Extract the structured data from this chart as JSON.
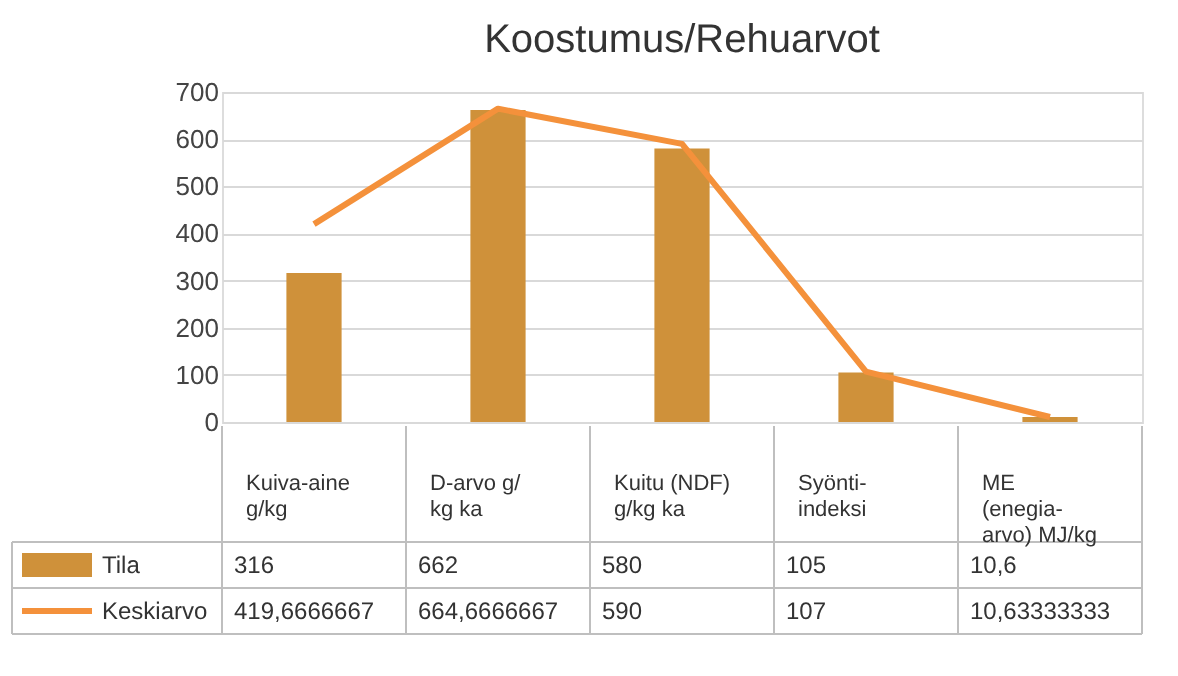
{
  "chart_data": {
    "type": "bar",
    "title": "Koostumus/Rehuarvot",
    "categories": [
      "Kuiva-aine\ng/kg",
      "D-arvo g/\nkg ka",
      "Kuitu (NDF)\ng/kg ka",
      "Syönti-\nindeksi",
      "ME\n(enegia-\narvo) MJ/kg"
    ],
    "series": [
      {
        "name": "Tila",
        "color": "#cf913a",
        "values": [
          316,
          662,
          580,
          105,
          10.6
        ],
        "value_labels": [
          "316",
          "662",
          "580",
          "105",
          "10,6"
        ]
      },
      {
        "name": "Keskiarvo",
        "type": "line",
        "color": "#f4913b",
        "values": [
          419.6666667,
          664.6666667,
          590,
          107,
          10.63333333
        ],
        "value_labels": [
          "419,6666667",
          "664,6666667",
          "590",
          "107",
          "10,63333333"
        ]
      }
    ],
    "ylim": [
      0,
      700
    ],
    "yticks": [
      0,
      100,
      200,
      300,
      400,
      500,
      600,
      700
    ],
    "grid": "y",
    "legend": "bottom"
  }
}
